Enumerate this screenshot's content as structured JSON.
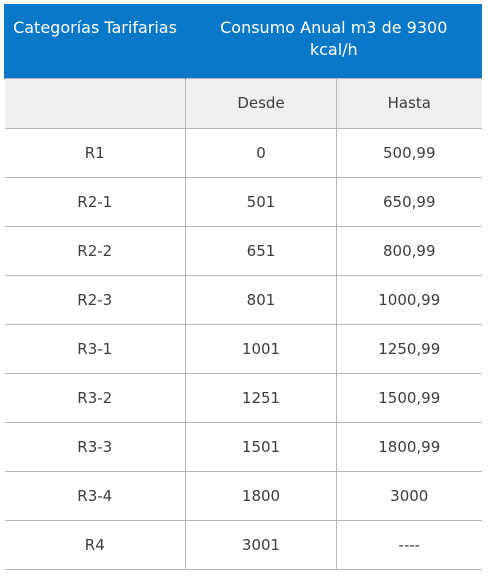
{
  "header": {
    "category": "Categorías Tarifarias",
    "consumption": "Consumo Anual m3 de 9300 kcal/h"
  },
  "subheader": {
    "category": "",
    "from": "Desde",
    "to": "Hasta"
  },
  "rows": [
    {
      "category": "R1",
      "from": "0",
      "to": "500,99"
    },
    {
      "category": "R2-1",
      "from": "501",
      "to": "650,99"
    },
    {
      "category": "R2-2",
      "from": "651",
      "to": "800,99"
    },
    {
      "category": "R2-3",
      "from": "801",
      "to": "1000,99"
    },
    {
      "category": "R3-1",
      "from": "1001",
      "to": "1250,99"
    },
    {
      "category": "R3-2",
      "from": "1251",
      "to": "1500,99"
    },
    {
      "category": "R3-3",
      "from": "1501",
      "to": "1800,99"
    },
    {
      "category": "R3-4",
      "from": "1800",
      "to": "3000"
    },
    {
      "category": "R4",
      "from": "3001",
      "to": "----"
    }
  ],
  "colors": {
    "header_bg": "#0a78c8",
    "subheader_bg": "#efefef",
    "border": "#b9b9b9"
  }
}
